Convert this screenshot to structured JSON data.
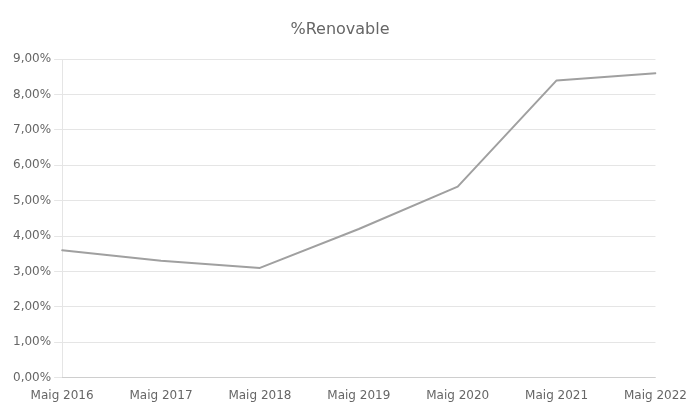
{
  "chart_data": {
    "type": "line",
    "title": "%Renovable",
    "categories": [
      "Maig 2016",
      "Maig 2017",
      "Maig 2018",
      "Maig 2019",
      "Maig 2020",
      "Maig 2021",
      "Maig 2022"
    ],
    "values": [
      0.036,
      0.033,
      0.031,
      0.042,
      0.054,
      0.084,
      0.086
    ],
    "color": "#a0a0a0",
    "ylim": [
      0.0,
      0.09
    ],
    "yticks": [
      {
        "value": 0.0,
        "label": "0,00%"
      },
      {
        "value": 0.01,
        "label": "1,00%"
      },
      {
        "value": 0.02,
        "label": "2,00%"
      },
      {
        "value": 0.03,
        "label": "3,00%"
      },
      {
        "value": 0.04,
        "label": "4,00%"
      },
      {
        "value": 0.05,
        "label": "5,00%"
      },
      {
        "value": 0.06,
        "label": "6,00%"
      },
      {
        "value": 0.07,
        "label": "7,00%"
      },
      {
        "value": 0.08,
        "label": "8,00%"
      },
      {
        "value": 0.09,
        "label": "9,00%"
      }
    ],
    "grid": true
  }
}
